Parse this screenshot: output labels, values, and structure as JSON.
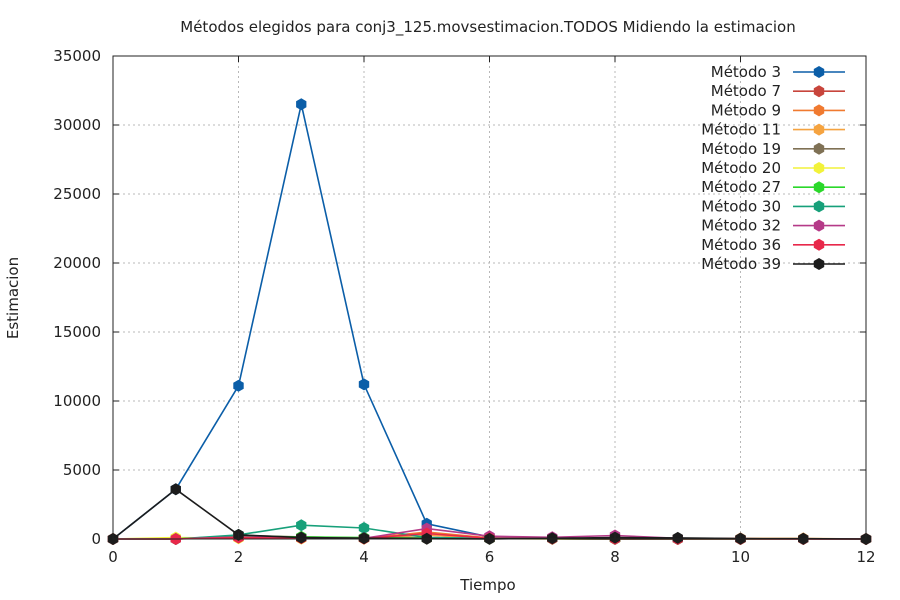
{
  "chart_data": {
    "type": "line",
    "title": "Métodos elegidos para conj3_125.movsestimacion.TODOS Midiendo la estimacion",
    "xlabel": "Tiempo",
    "ylabel": "Estimacion",
    "xlim": [
      0,
      12
    ],
    "ylim": [
      0,
      35000
    ],
    "xticks": [
      0,
      2,
      4,
      6,
      8,
      10,
      12
    ],
    "yticks": [
      0,
      5000,
      10000,
      15000,
      20000,
      25000,
      30000,
      35000
    ],
    "grid": true,
    "legend_position": "top-right",
    "x": [
      0,
      1,
      2,
      3,
      4,
      5,
      6,
      7,
      8,
      9,
      10,
      11,
      12
    ],
    "series": [
      {
        "name": "Método 3",
        "color": "#0b5ea8",
        "values": [
          0,
          3600,
          11100,
          31500,
          11200,
          1100,
          150,
          40,
          20,
          10,
          5,
          0,
          0
        ]
      },
      {
        "name": "Método 7",
        "color": "#c8453c",
        "values": [
          0,
          0,
          200,
          100,
          50,
          300,
          50,
          20,
          10,
          0,
          0,
          0,
          0
        ]
      },
      {
        "name": "Método 9",
        "color": "#f07a30",
        "values": [
          0,
          0,
          150,
          80,
          50,
          500,
          80,
          30,
          10,
          0,
          0,
          0,
          0
        ]
      },
      {
        "name": "Método 11",
        "color": "#f5a340",
        "values": [
          0,
          0,
          150,
          60,
          40,
          300,
          50,
          20,
          10,
          40,
          40,
          40,
          0
        ]
      },
      {
        "name": "Método 19",
        "color": "#7f7155",
        "values": [
          0,
          0,
          250,
          150,
          80,
          100,
          50,
          20,
          10,
          10,
          0,
          0,
          0
        ]
      },
      {
        "name": "Método 20",
        "color": "#f2f23a",
        "values": [
          0,
          100,
          50,
          30,
          20,
          30,
          20,
          10,
          10,
          0,
          0,
          0,
          0
        ]
      },
      {
        "name": "Método 27",
        "color": "#2ad82a",
        "values": [
          0,
          0,
          200,
          150,
          100,
          50,
          30,
          20,
          10,
          0,
          0,
          0,
          0
        ]
      },
      {
        "name": "Método 30",
        "color": "#17a07a",
        "values": [
          0,
          0,
          300,
          1000,
          800,
          100,
          50,
          20,
          10,
          0,
          0,
          0,
          0
        ]
      },
      {
        "name": "Método 32",
        "color": "#b53a88",
        "values": [
          0,
          0,
          150,
          80,
          50,
          750,
          200,
          120,
          250,
          50,
          20,
          10,
          0
        ]
      },
      {
        "name": "Método 36",
        "color": "#e8284a",
        "values": [
          0,
          0,
          100,
          50,
          30,
          400,
          50,
          20,
          10,
          0,
          0,
          0,
          0
        ]
      },
      {
        "name": "Método 39",
        "color": "#1c1c1c",
        "values": [
          0,
          3600,
          300,
          100,
          60,
          20,
          10,
          50,
          100,
          80,
          30,
          20,
          0
        ]
      }
    ]
  }
}
